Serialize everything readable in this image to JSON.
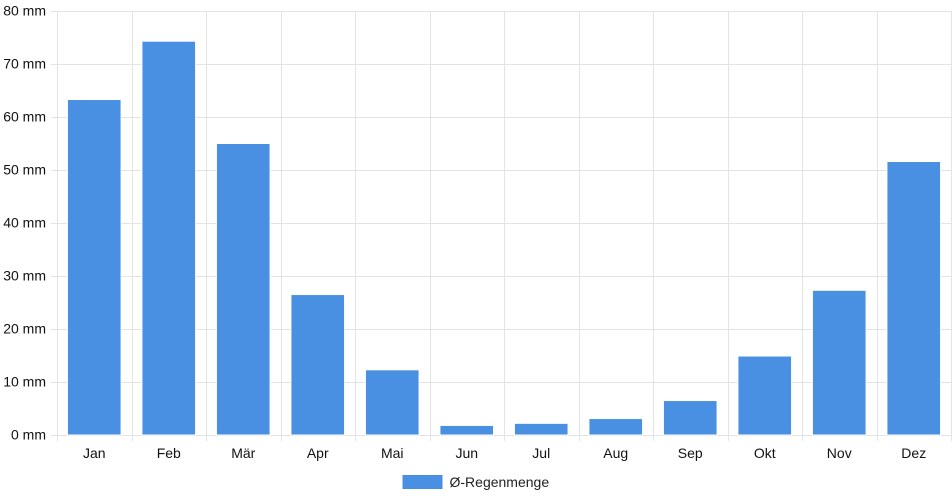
{
  "chart_data": {
    "type": "bar",
    "categories": [
      "Jan",
      "Feb",
      "Mär",
      "Apr",
      "Mai",
      "Jun",
      "Jul",
      "Aug",
      "Sep",
      "Okt",
      "Nov",
      "Dez"
    ],
    "series": [
      {
        "name": "Ø-Regenmenge",
        "values": [
          63.3,
          74.3,
          55.0,
          26.5,
          12.3,
          1.8,
          2.2,
          3.1,
          6.5,
          14.9,
          27.3,
          51.6
        ],
        "color": "#4a90e2"
      }
    ],
    "y_unit": "mm",
    "ylim": [
      0,
      80
    ],
    "y_ticks": [
      0,
      10,
      20,
      30,
      40,
      50,
      60,
      70,
      80
    ],
    "y_tick_labels": [
      "0 mm",
      "10 mm",
      "20 mm",
      "30 mm",
      "40 mm",
      "50 mm",
      "60 mm",
      "70 mm",
      "80 mm"
    ],
    "grid": true,
    "legend_position": "bottom-center"
  }
}
